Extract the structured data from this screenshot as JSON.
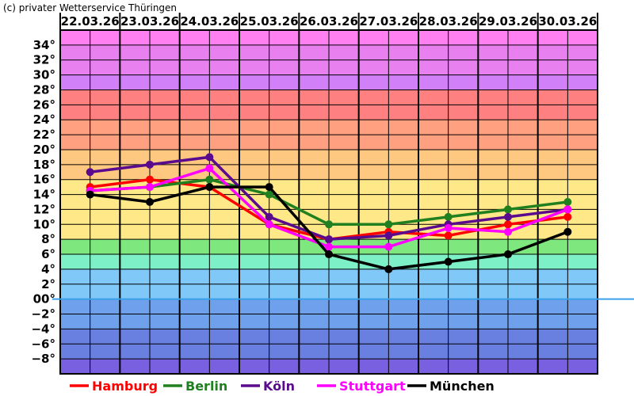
{
  "copyright": "(c) privater Wetterservice Thüringen",
  "chart_data": {
    "type": "line",
    "title": "",
    "xlabel": "",
    "ylabel": "",
    "categories": [
      "22.03.26",
      "23.03.26",
      "24.03.26",
      "25.03.26",
      "26.03.26",
      "27.03.26",
      "28.03.26",
      "29.03.26",
      "30.03.26"
    ],
    "ylim": [
      -10,
      36
    ],
    "y_ticks": [
      {
        "value": 34,
        "label": "34°"
      },
      {
        "value": 32,
        "label": "32°"
      },
      {
        "value": 30,
        "label": "30°"
      },
      {
        "value": 28,
        "label": "28°"
      },
      {
        "value": 26,
        "label": "26°"
      },
      {
        "value": 24,
        "label": "24°"
      },
      {
        "value": 22,
        "label": "22°"
      },
      {
        "value": 20,
        "label": "20°"
      },
      {
        "value": 18,
        "label": "18°"
      },
      {
        "value": 16,
        "label": "16°"
      },
      {
        "value": 14,
        "label": "14°"
      },
      {
        "value": 12,
        "label": "12°"
      },
      {
        "value": 10,
        "label": "10°"
      },
      {
        "value": 8,
        "label": "8°"
      },
      {
        "value": 6,
        "label": "6°"
      },
      {
        "value": 4,
        "label": "4°"
      },
      {
        "value": 2,
        "label": "2°"
      },
      {
        "value": 0,
        "label": "00°"
      },
      {
        "value": -2,
        "label": "−2°"
      },
      {
        "value": -4,
        "label": "−4°"
      },
      {
        "value": -6,
        "label": "−6°"
      },
      {
        "value": -8,
        "label": "−8°"
      }
    ],
    "grid": true,
    "legend": "bottom",
    "zero_line_color": "#3aa0e8",
    "series": [
      {
        "name": "Hamburg",
        "color": "#ff0000",
        "values": [
          15,
          16,
          15,
          10,
          8,
          9,
          8.5,
          10,
          11
        ]
      },
      {
        "name": "Berlin",
        "color": "#208020",
        "values": [
          14.5,
          15,
          16,
          14,
          10,
          10,
          11,
          12,
          13
        ]
      },
      {
        "name": "Köln",
        "color": "#5a0a8c",
        "values": [
          17,
          18,
          19,
          11,
          8,
          8.5,
          10,
          11,
          12
        ]
      },
      {
        "name": "Stuttgart",
        "color": "#ff00ff",
        "values": [
          14.5,
          15,
          17.5,
          10,
          7,
          7,
          9.5,
          9,
          12
        ]
      },
      {
        "name": "München",
        "color": "#000000",
        "values": [
          14,
          13,
          15,
          15,
          6,
          4,
          5,
          6,
          9
        ]
      }
    ],
    "bands": [
      {
        "from": 34,
        "to": 36,
        "color": "#ff80f0"
      },
      {
        "from": 30,
        "to": 34,
        "color": "#e880f0"
      },
      {
        "from": 28,
        "to": 30,
        "color": "#d280f8"
      },
      {
        "from": 24,
        "to": 28,
        "color": "#ff8080"
      },
      {
        "from": 20,
        "to": 24,
        "color": "#ffa080"
      },
      {
        "from": 16,
        "to": 20,
        "color": "#ffc880"
      },
      {
        "from": 8,
        "to": 16,
        "color": "#ffe888"
      },
      {
        "from": 6,
        "to": 8,
        "color": "#7ee87e"
      },
      {
        "from": 4,
        "to": 6,
        "color": "#7ef0c8"
      },
      {
        "from": 0,
        "to": 4,
        "color": "#80c8f8"
      },
      {
        "from": -4,
        "to": 0,
        "color": "#6fa0ec"
      },
      {
        "from": -8,
        "to": -4,
        "color": "#6a80e0"
      },
      {
        "from": -10,
        "to": -8,
        "color": "#7860e0"
      }
    ]
  }
}
